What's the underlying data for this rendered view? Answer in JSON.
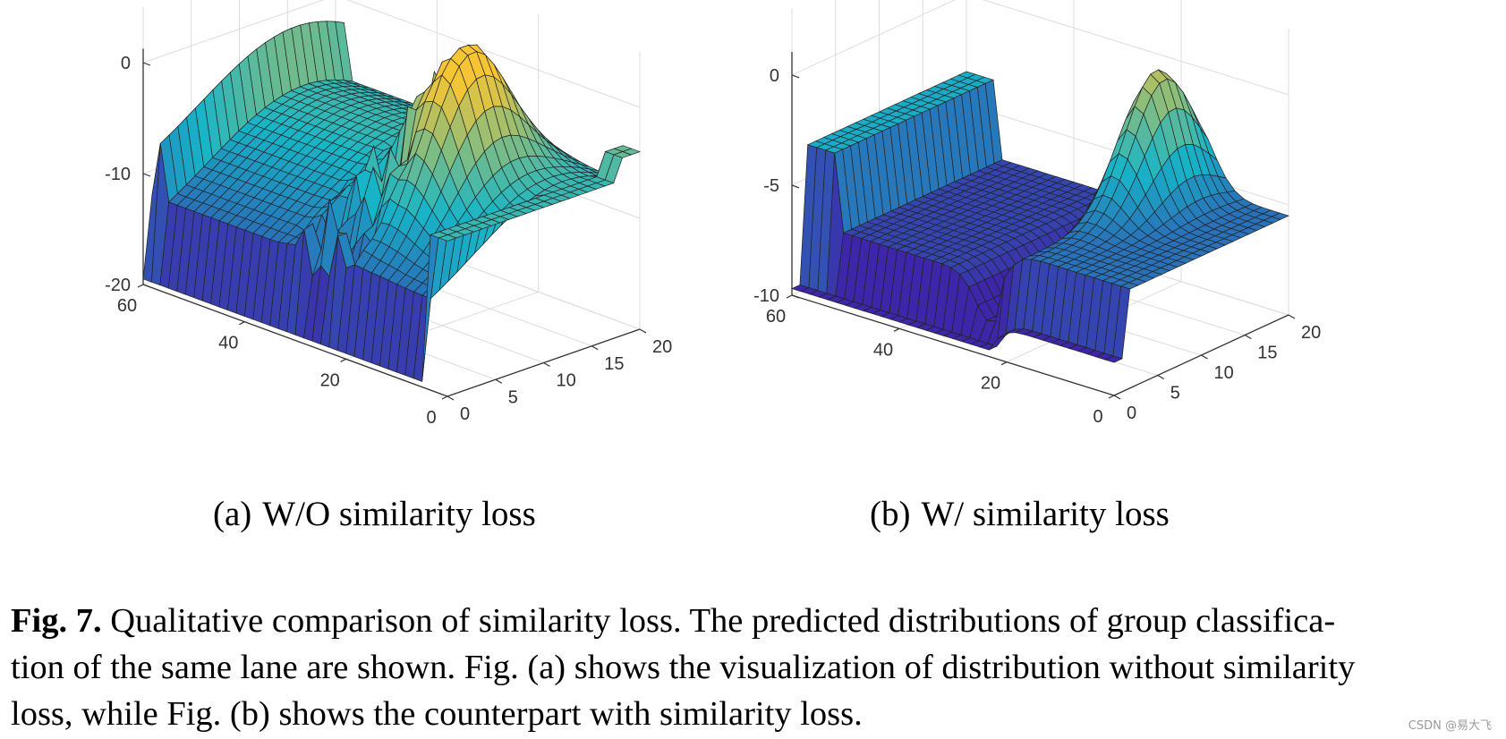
{
  "subfigures": [
    {
      "tag": "(a)",
      "label": "W/O similarity loss",
      "variant": "noisy",
      "z_ticks": [
        "0",
        "-10",
        "-20"
      ],
      "x_ticks": [
        "60",
        "40",
        "20",
        "0"
      ],
      "y_ticks": [
        "0",
        "5",
        "10",
        "15",
        "20"
      ]
    },
    {
      "tag": "(b)",
      "label": "W/ similarity loss",
      "variant": "smooth",
      "z_ticks": [
        "0",
        "-5",
        "-10"
      ],
      "x_ticks": [
        "60",
        "40",
        "20",
        "0"
      ],
      "y_ticks": [
        "0",
        "5",
        "10",
        "15",
        "20"
      ]
    }
  ],
  "caption": {
    "label": "Fig. 7.",
    "line1": "Qualitative comparison of similarity loss. The predicted distributions of group classifica-",
    "line2": "tion of the same lane are shown. Fig. (a) shows the visualization of distribution without similarity",
    "line3": "loss, while Fig. (b) shows the counterpart with similarity loss."
  },
  "watermark": "CSDN @易大飞",
  "colors": {
    "low": "#3d26a8",
    "mid": "#17b5c8",
    "high": "#f5c535"
  },
  "chart_data": [
    {
      "type": "surface",
      "title": "(a) W/O similarity loss",
      "x_range": [
        0,
        60
      ],
      "y_range": [
        0,
        20
      ],
      "z_range": [
        -20,
        5
      ],
      "x_ticks": [
        0,
        20,
        40,
        60
      ],
      "y_ticks": [
        0,
        5,
        10,
        15,
        20
      ],
      "z_ticks": [
        -20,
        -10,
        0
      ],
      "grid": true
    },
    {
      "type": "surface",
      "title": "(b) W/ similarity loss",
      "x_range": [
        0,
        60
      ],
      "y_range": [
        0,
        20
      ],
      "z_range": [
        -10,
        3
      ],
      "x_ticks": [
        0,
        20,
        40,
        60
      ],
      "y_ticks": [
        0,
        5,
        10,
        15,
        20
      ],
      "z_ticks": [
        -10,
        -5,
        0
      ],
      "grid": true
    }
  ]
}
